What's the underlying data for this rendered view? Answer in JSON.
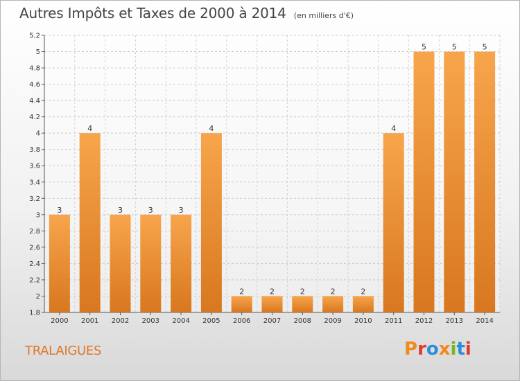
{
  "title": "Autres Impôts et Taxes de 2000 à 2014",
  "subtitle": "(en milliers d'€)",
  "commune": "TRALAIGUES",
  "logo": {
    "text": "Proxiti",
    "colors": [
      "#f08a1c",
      "#e23a2a",
      "#2b8fd6",
      "#f08a1c",
      "#7ab51d",
      "#2b8fd6",
      "#e23a2a"
    ]
  },
  "colors": {
    "bar_top": "#f7a54c",
    "bar_bottom": "#d8771f",
    "title": "#444444",
    "commune": "#e0762a"
  },
  "chart_data": {
    "type": "bar",
    "categories": [
      "2000",
      "2001",
      "2002",
      "2003",
      "2004",
      "2005",
      "2006",
      "2007",
      "2008",
      "2009",
      "2010",
      "2011",
      "2012",
      "2013",
      "2014"
    ],
    "values": [
      3,
      4,
      3,
      3,
      3,
      4,
      2,
      2,
      2,
      2,
      2,
      4,
      5,
      5,
      5
    ],
    "bar_heights": [
      3,
      4,
      3,
      3,
      3,
      4,
      2,
      2,
      2,
      2,
      2,
      4,
      5,
      5,
      5
    ],
    "data_labels": [
      "3",
      "4",
      "3",
      "3",
      "3",
      "4",
      "2",
      "2",
      "2",
      "2",
      "2",
      "4",
      "5",
      "5",
      "5"
    ],
    "ylim": [
      1.8,
      5.2
    ],
    "yticks": [
      "1.8",
      "2",
      "2.2",
      "2.4",
      "2.6",
      "2.8",
      "3",
      "3.2",
      "3.4",
      "3.6",
      "3.8",
      "4",
      "4.2",
      "4.4",
      "4.6",
      "4.8",
      "5",
      "5.2"
    ],
    "ytick_values": [
      1.8,
      2,
      2.2,
      2.4,
      2.6,
      2.8,
      3,
      3.2,
      3.4,
      3.6,
      3.8,
      4,
      4.2,
      4.4,
      4.6,
      4.8,
      5,
      5.2
    ],
    "grid": true,
    "xlabel": "",
    "ylabel": ""
  }
}
